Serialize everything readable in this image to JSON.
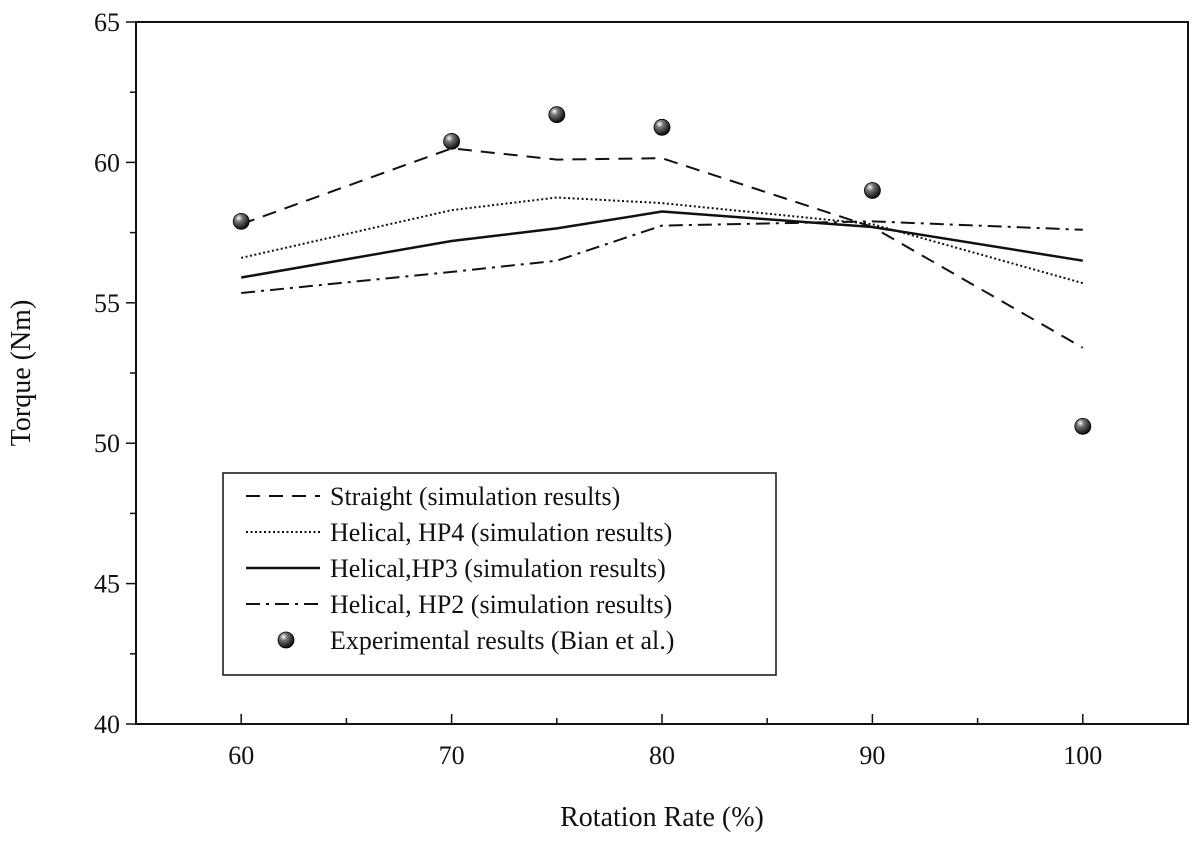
{
  "chart_data": {
    "type": "line",
    "title": "",
    "xlabel": "Rotation Rate (%)",
    "ylabel": "Torque (Nm)",
    "xlim": [
      55,
      105
    ],
    "ylim": [
      40,
      65
    ],
    "x_ticks": [
      60,
      70,
      80,
      90,
      100
    ],
    "y_ticks": [
      40,
      45,
      50,
      55,
      60,
      65
    ],
    "grid": false,
    "legend_position": "bottom-left",
    "series": [
      {
        "name": "Straight (simulation results)",
        "style": "dashed",
        "x": [
          60,
          70,
          75,
          80,
          90,
          100
        ],
        "y": [
          57.8,
          60.5,
          60.1,
          60.15,
          57.7,
          53.4
        ]
      },
      {
        "name": "Helical, HP4 (simulation results)",
        "style": "dotted",
        "x": [
          60,
          70,
          75,
          80,
          90,
          100
        ],
        "y": [
          56.6,
          58.3,
          58.75,
          58.55,
          57.8,
          55.7
        ]
      },
      {
        "name": "Helical,HP3 (simulation results)",
        "style": "solid",
        "x": [
          60,
          70,
          75,
          80,
          90,
          100
        ],
        "y": [
          55.9,
          57.2,
          57.65,
          58.25,
          57.7,
          56.5
        ]
      },
      {
        "name": "Helical, HP2 (simulation results)",
        "style": "dashdot",
        "x": [
          60,
          70,
          75,
          80,
          90,
          100
        ],
        "y": [
          55.35,
          56.1,
          56.5,
          57.75,
          57.9,
          57.6
        ]
      },
      {
        "name": "Experimental results (Bian et al.)",
        "style": "markers",
        "x": [
          60,
          70,
          75,
          80,
          90,
          100
        ],
        "y": [
          57.9,
          60.75,
          61.7,
          61.25,
          59.0,
          50.6
        ]
      }
    ]
  }
}
